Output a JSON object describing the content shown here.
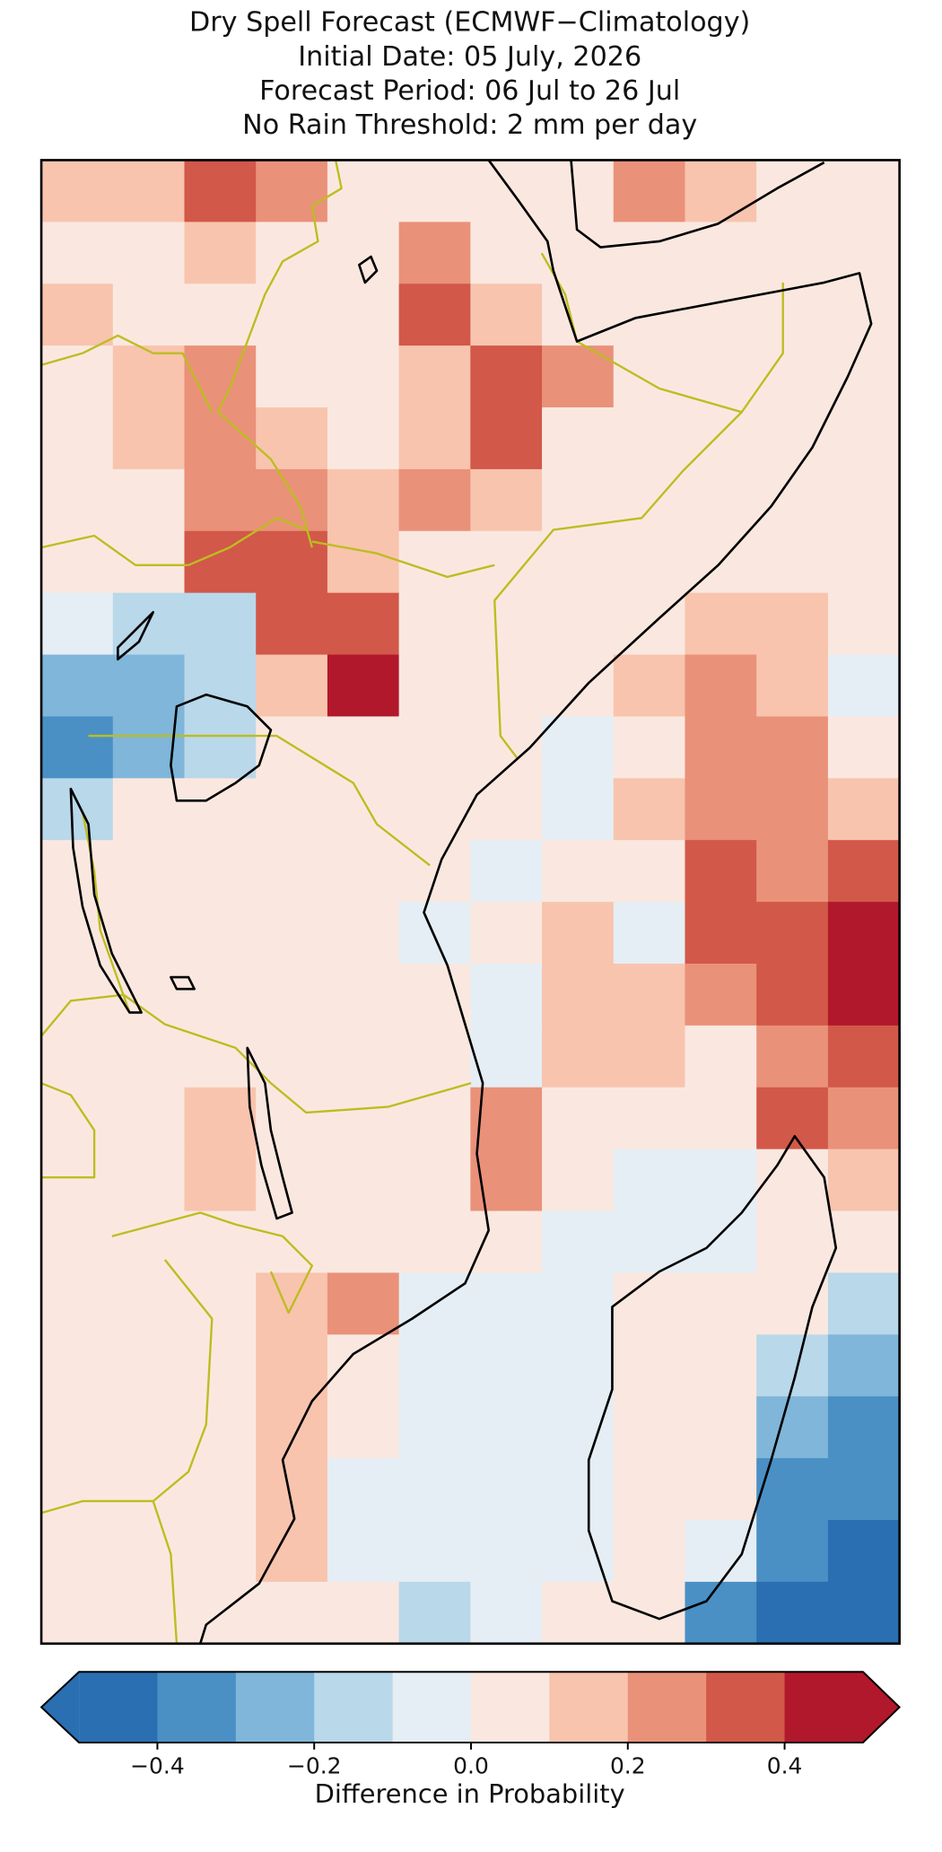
{
  "chart_data": {
    "type": "heatmap",
    "title": [
      "Dry Spell Forecast (ECMWF−Climatology)",
      "Initial Date: 05 July, 2026",
      "Forecast Period: 06 Jul to 26 Jul",
      "No Rain Threshold: 2 mm per day"
    ],
    "values": [
      [
        0.15,
        0.15,
        0.35,
        0.25,
        0.05,
        0.05,
        0.05,
        0.05,
        0.25,
        0.15,
        0.05,
        0.05
      ],
      [
        0.05,
        0.05,
        0.15,
        0.05,
        0.05,
        0.25,
        0.05,
        0.05,
        0.05,
        0.05,
        0.05,
        0.05
      ],
      [
        0.15,
        0.05,
        0.05,
        0.05,
        0.05,
        0.35,
        0.15,
        0.05,
        0.05,
        0.05,
        0.05,
        0.05
      ],
      [
        0.05,
        0.15,
        0.25,
        0.05,
        0.05,
        0.15,
        0.35,
        0.25,
        0.05,
        0.05,
        0.05,
        0.05
      ],
      [
        0.05,
        0.15,
        0.25,
        0.15,
        0.05,
        0.15,
        0.35,
        0.05,
        0.05,
        0.05,
        0.05,
        0.05
      ],
      [
        0.05,
        0.05,
        0.25,
        0.25,
        0.15,
        0.25,
        0.15,
        0.05,
        0.05,
        0.05,
        0.05,
        0.05
      ],
      [
        0.05,
        0.05,
        0.35,
        0.35,
        0.15,
        0.05,
        0.05,
        0.05,
        0.05,
        0.05,
        0.05,
        0.05
      ],
      [
        -0.05,
        -0.15,
        -0.15,
        0.35,
        0.35,
        0.05,
        0.05,
        0.05,
        0.05,
        0.15,
        0.15,
        0.05
      ],
      [
        -0.25,
        -0.25,
        -0.15,
        0.15,
        0.45,
        0.05,
        0.05,
        0.05,
        0.15,
        0.25,
        0.15,
        -0.05
      ],
      [
        -0.35,
        -0.25,
        -0.15,
        0.05,
        0.05,
        0.05,
        0.05,
        -0.05,
        0.05,
        0.25,
        0.25,
        0.05
      ],
      [
        -0.15,
        0.05,
        0.05,
        0.05,
        0.05,
        0.05,
        0.05,
        -0.05,
        0.15,
        0.25,
        0.25,
        0.15
      ],
      [
        0.05,
        0.05,
        0.05,
        0.05,
        0.05,
        0.05,
        -0.05,
        0.05,
        0.05,
        0.35,
        0.25,
        0.35
      ],
      [
        0.05,
        0.05,
        0.05,
        0.05,
        0.05,
        -0.05,
        0.05,
        0.15,
        -0.05,
        0.35,
        0.35,
        0.45
      ],
      [
        0.05,
        0.05,
        0.05,
        0.05,
        0.05,
        0.05,
        -0.05,
        0.15,
        0.15,
        0.25,
        0.35,
        0.45
      ],
      [
        0.05,
        0.05,
        0.05,
        0.05,
        0.05,
        0.05,
        -0.05,
        0.15,
        0.15,
        0.05,
        0.25,
        0.35
      ],
      [
        0.05,
        0.05,
        0.15,
        0.05,
        0.05,
        0.05,
        0.25,
        0.05,
        0.05,
        0.05,
        0.35,
        0.25
      ],
      [
        0.05,
        0.05,
        0.15,
        0.05,
        0.05,
        0.05,
        0.25,
        0.05,
        -0.05,
        -0.05,
        0.05,
        0.15
      ],
      [
        0.05,
        0.05,
        0.05,
        0.05,
        0.05,
        0.05,
        0.05,
        -0.05,
        -0.05,
        -0.05,
        0.05,
        0.05
      ],
      [
        0.05,
        0.05,
        0.05,
        0.15,
        0.25,
        -0.05,
        -0.05,
        -0.05,
        0.05,
        0.05,
        0.05,
        -0.15
      ],
      [
        0.05,
        0.05,
        0.05,
        0.15,
        0.05,
        -0.05,
        -0.05,
        -0.05,
        0.05,
        0.05,
        -0.15,
        -0.25
      ],
      [
        0.05,
        0.05,
        0.05,
        0.15,
        0.05,
        -0.05,
        -0.05,
        -0.05,
        0.05,
        0.05,
        -0.25,
        -0.35
      ],
      [
        0.05,
        0.05,
        0.05,
        0.15,
        -0.05,
        -0.05,
        -0.05,
        -0.05,
        0.05,
        0.05,
        -0.35,
        -0.35
      ],
      [
        0.05,
        0.05,
        0.05,
        0.15,
        -0.05,
        -0.05,
        -0.05,
        -0.05,
        0.05,
        -0.05,
        -0.35,
        -0.45
      ],
      [
        0.05,
        0.05,
        0.05,
        0.05,
        0.05,
        -0.15,
        -0.05,
        0.05,
        0.05,
        -0.35,
        -0.45,
        -0.45
      ]
    ],
    "colorbar": {
      "label": "Difference in Probability",
      "bounds": [
        -0.5,
        -0.4,
        -0.3,
        -0.2,
        -0.1,
        0,
        0.1,
        0.2,
        0.3,
        0.4,
        0.5
      ],
      "colors": [
        "#2a6fb2",
        "#4a90c5",
        "#7fb6d9",
        "#b9d8ea",
        "#e5eef4",
        "#fae8e0",
        "#f8c4ae",
        "#ea9179",
        "#d25849",
        "#b2182b"
      ],
      "extend": "both",
      "ticks": [
        {
          "value": -0.4,
          "label": "−0.4"
        },
        {
          "value": -0.2,
          "label": "−0.2"
        },
        {
          "value": 0,
          "label": "0.0"
        },
        0.2,
        0.4
      ]
    }
  }
}
